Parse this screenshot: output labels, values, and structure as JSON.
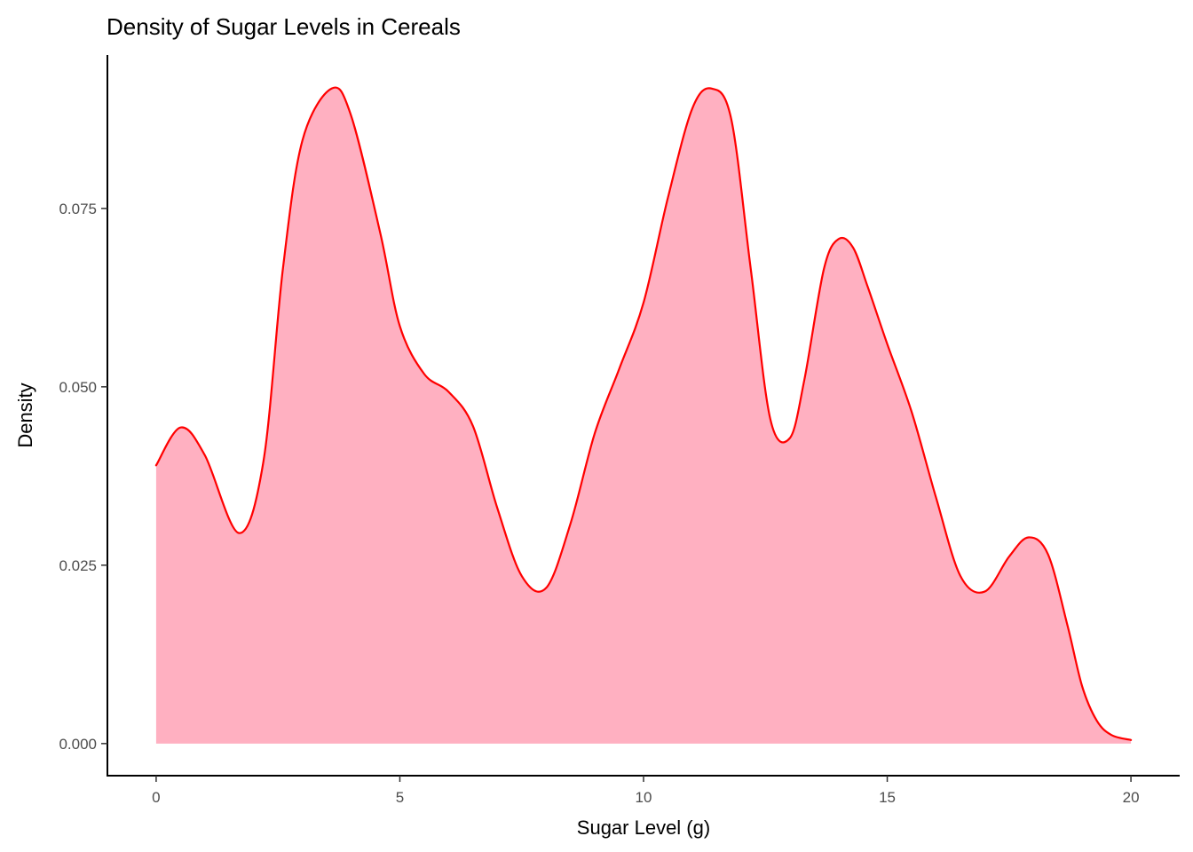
{
  "chart_data": {
    "type": "area",
    "title": "Density of Sugar Levels in Cereals",
    "xlabel": "Sugar Level (g)",
    "ylabel": "Density",
    "xlim": [
      -1,
      21
    ],
    "ylim": [
      -0.0045,
      0.0965
    ],
    "x_ticks": [
      0,
      5,
      10,
      15,
      20
    ],
    "x_tick_labels": [
      "0",
      "5",
      "10",
      "15",
      "20"
    ],
    "y_ticks": [
      0,
      0.025,
      0.05,
      0.075
    ],
    "y_tick_labels": [
      "0.000",
      "0.025",
      "0.050",
      "0.075"
    ],
    "grid": false,
    "fill_color": "#FFB0C1",
    "line_color": "#FF0000",
    "series": [
      {
        "x": [
          0,
          0.5,
          1.0,
          1.7,
          2.2,
          2.6,
          3.0,
          3.6,
          4.0,
          4.6,
          5.0,
          5.5,
          6.0,
          6.5,
          7.0,
          7.5,
          8.0,
          8.5,
          9.0,
          9.5,
          10.0,
          10.5,
          11.0,
          11.4,
          11.8,
          12.2,
          12.6,
          13.0,
          13.3,
          13.7,
          14.0,
          14.3,
          14.6,
          15.0,
          15.5,
          16.0,
          16.5,
          17.0,
          17.5,
          17.9,
          18.3,
          18.7,
          19.0,
          19.3,
          19.6,
          20.0
        ],
        "y": [
          0.039,
          0.0443,
          0.0404,
          0.0295,
          0.0395,
          0.0665,
          0.0845,
          0.0918,
          0.088,
          0.0715,
          0.0585,
          0.0518,
          0.0493,
          0.0445,
          0.033,
          0.0235,
          0.0218,
          0.0308,
          0.0435,
          0.0525,
          0.0618,
          0.0765,
          0.089,
          0.0918,
          0.0875,
          0.0665,
          0.0455,
          0.0428,
          0.051,
          0.0665,
          0.0707,
          0.0695,
          0.064,
          0.056,
          0.0465,
          0.0345,
          0.0235,
          0.0213,
          0.0262,
          0.0289,
          0.0265,
          0.0165,
          0.008,
          0.0032,
          0.0012,
          0.0005
        ]
      }
    ]
  }
}
